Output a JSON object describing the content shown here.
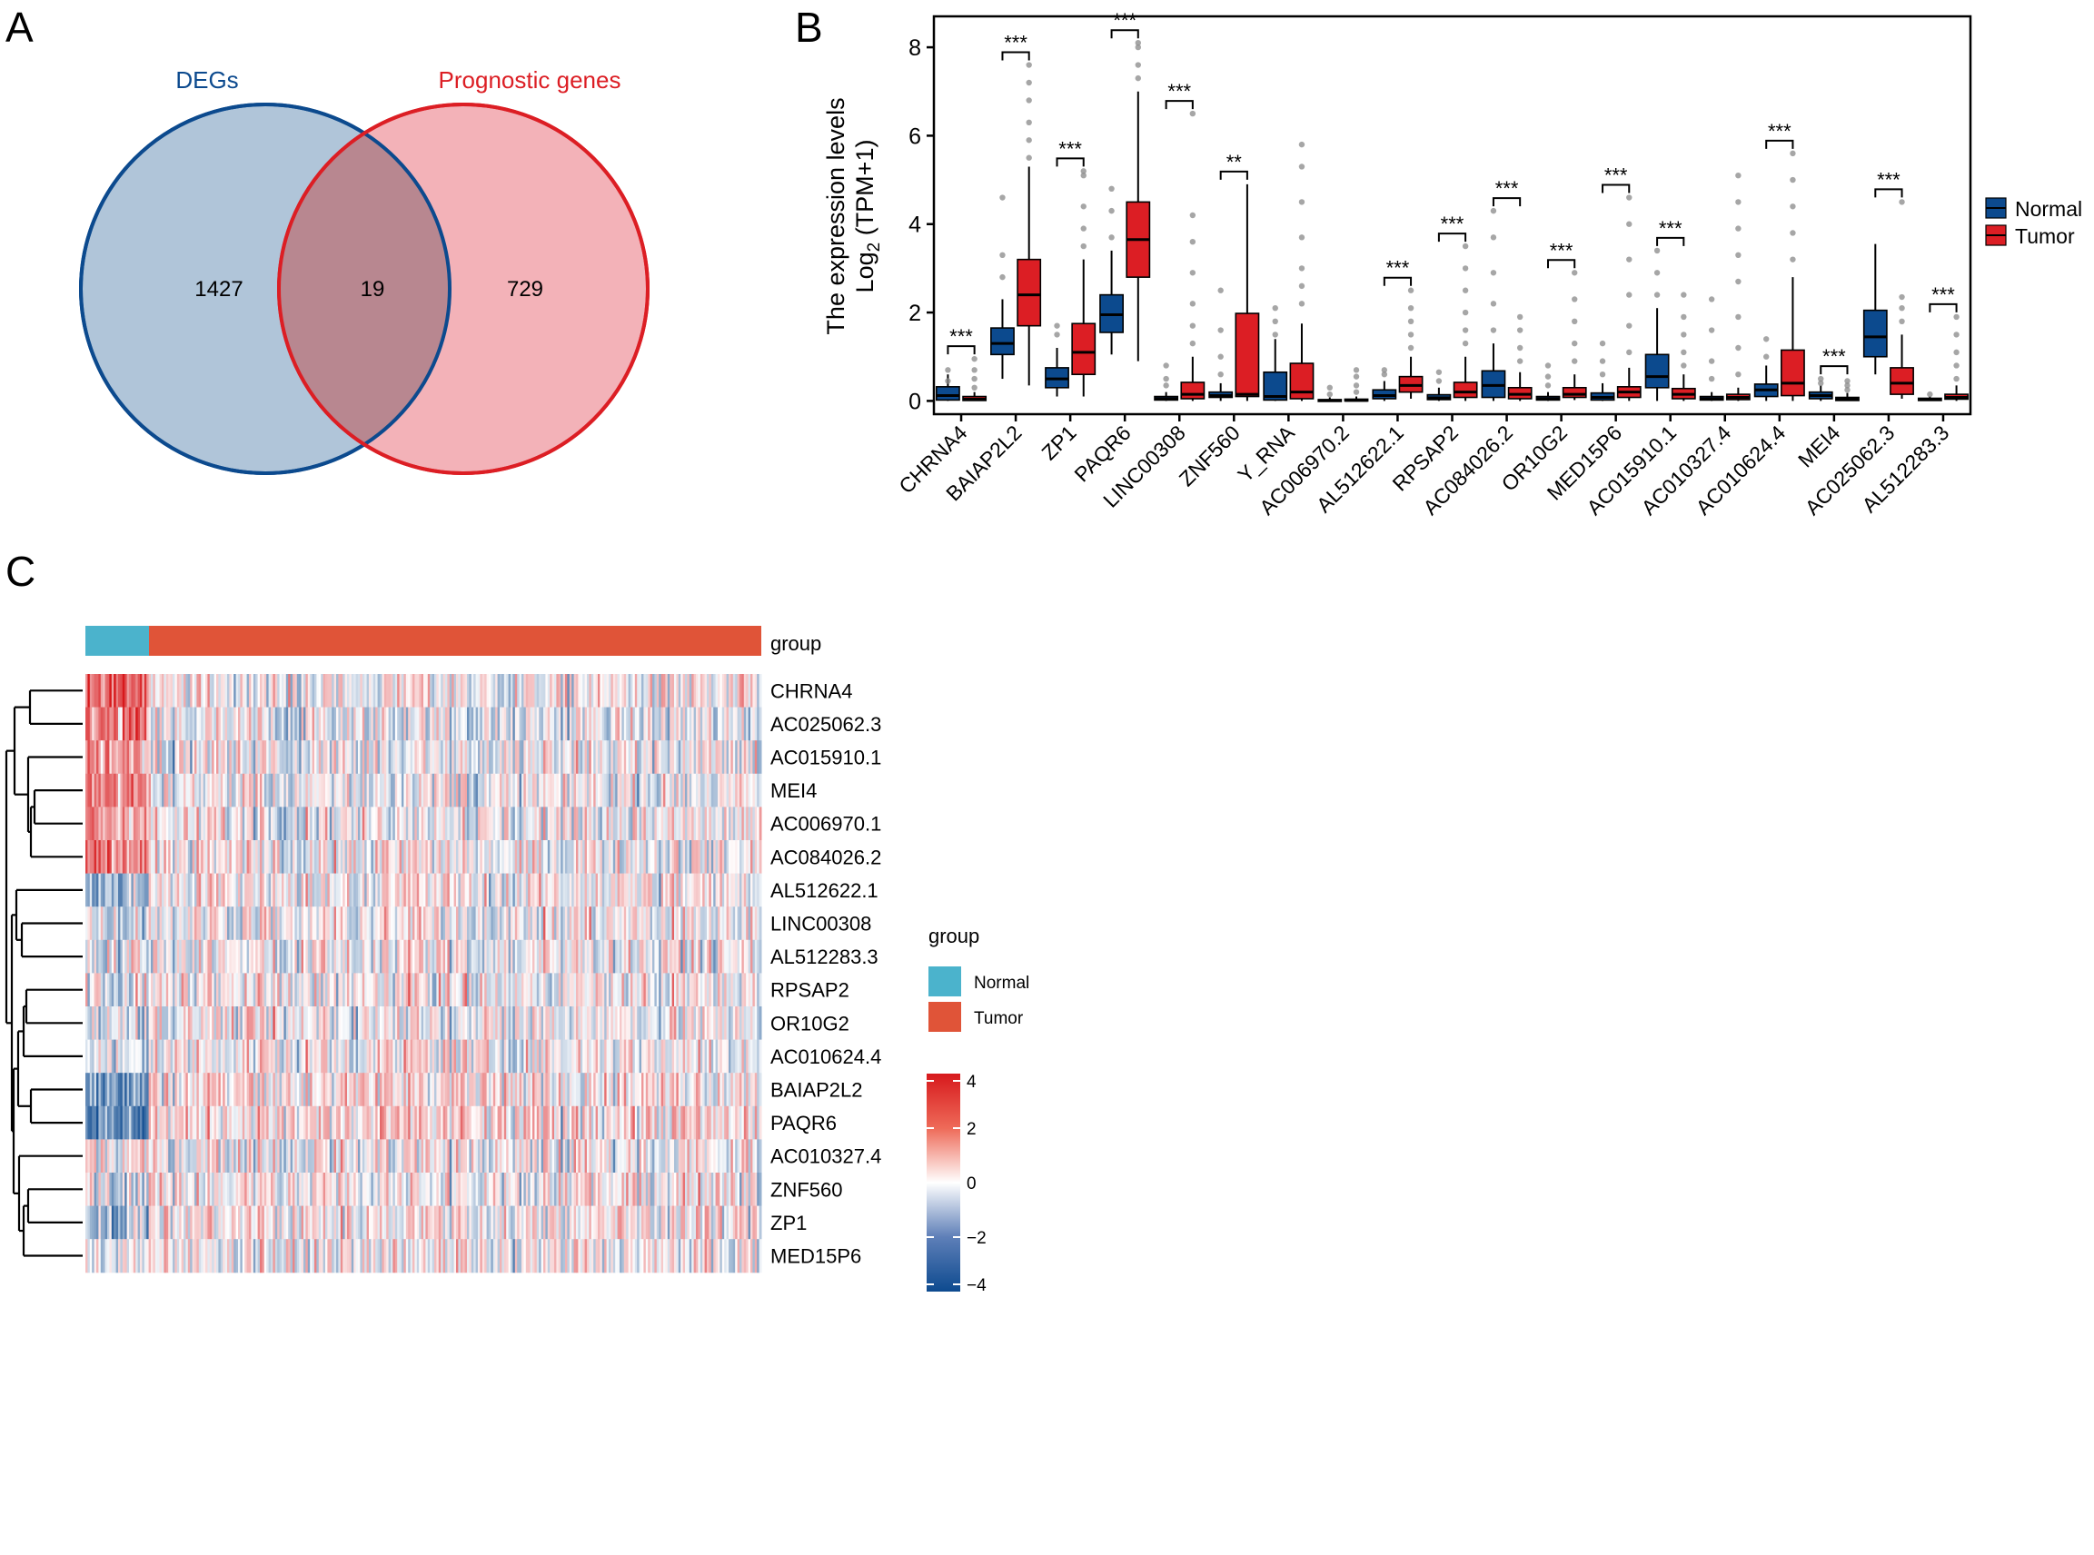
{
  "panel_labels": {
    "a": "A",
    "b": "B",
    "c": "C"
  },
  "colors": {
    "normal": "#0c4a8e",
    "tumor": "#dc1e24",
    "degs_fill": "#a9c0d6",
    "degs_stroke": "#0c4a8e",
    "prog_fill": "#f2aab0",
    "prog_stroke": "#dc1e24",
    "overlap_fill": "#b88790",
    "heat_normal": "#4bb3cc",
    "heat_tumor": "#e05438",
    "heat_high": "#d7191c",
    "heat_low": "#0d4a8f"
  },
  "chart_data": [
    {
      "type": "venn",
      "sets": [
        {
          "name": "DEGs",
          "only": 1427
        },
        {
          "name": "Prognostic genes",
          "only": 729
        }
      ],
      "intersection": 19
    },
    {
      "type": "box",
      "ylabel_line1": "The expression levels",
      "ylabel_line2_prefix": "Log",
      "ylabel_line2_sub": "2",
      "ylabel_line2_suffix": " (TPM+1)",
      "ylim": [
        -0.3,
        8.7
      ],
      "yticks": [
        "0",
        "2",
        "4",
        "6",
        "8"
      ],
      "legend": [
        "Normal",
        "Tumor"
      ],
      "genes": [
        {
          "name": "CHRNA4",
          "sig": "***",
          "normal": [
            0,
            0.02,
            0.12,
            0.32,
            0.6
          ],
          "tumor": [
            0,
            0.01,
            0.04,
            0.1,
            0.2
          ],
          "nout": [
            0.45,
            0.7
          ],
          "tout": [
            0.3,
            0.5,
            0.7,
            0.95
          ]
        },
        {
          "name": "BAIAP2L2",
          "sig": "***",
          "normal": [
            0.5,
            1.05,
            1.3,
            1.65,
            2.3
          ],
          "tumor": [
            0.35,
            1.7,
            2.4,
            3.2,
            5.3
          ],
          "nout": [
            2.8,
            3.3,
            4.6
          ],
          "tout": [
            5.5,
            5.9,
            6.3,
            6.8,
            7.2,
            7.6
          ]
        },
        {
          "name": "ZP1",
          "sig": "***",
          "normal": [
            0.1,
            0.3,
            0.5,
            0.75,
            1.2
          ],
          "tumor": [
            0.1,
            0.6,
            1.1,
            1.75,
            3.2
          ],
          "nout": [
            1.5,
            1.7
          ],
          "tout": [
            3.5,
            3.9,
            4.4,
            5.1,
            5.2
          ]
        },
        {
          "name": "PAQR6",
          "sig": "***",
          "normal": [
            1.05,
            1.55,
            1.95,
            2.4,
            3.4
          ],
          "tumor": [
            0.9,
            2.8,
            3.65,
            4.5,
            7.0
          ],
          "nout": [
            3.7,
            4.3,
            4.8
          ],
          "tout": [
            7.3,
            7.6,
            8.0,
            8.1
          ]
        },
        {
          "name": "LINC00308",
          "sig": "***",
          "normal": [
            0,
            0.02,
            0.05,
            0.1,
            0.2
          ],
          "tumor": [
            0,
            0.05,
            0.15,
            0.42,
            1.0
          ],
          "nout": [
            0.35,
            0.5,
            0.8
          ],
          "tout": [
            1.3,
            1.7,
            2.2,
            2.9,
            3.6,
            4.2,
            6.5
          ]
        },
        {
          "name": "ZNF560",
          "sig": "**",
          "normal": [
            0,
            0.08,
            0.12,
            0.2,
            0.4
          ],
          "tumor": [
            0,
            0.1,
            0.15,
            1.98,
            4.9
          ],
          "nout": [
            0.6,
            1.0,
            1.6,
            2.5
          ],
          "tout": []
        },
        {
          "name": "Y_RNA",
          "sig": "",
          "normal": [
            0,
            0.02,
            0.1,
            0.65,
            1.4
          ],
          "tumor": [
            0,
            0.05,
            0.2,
            0.85,
            1.75
          ],
          "nout": [
            1.5,
            1.8,
            2.1
          ],
          "tout": [
            2.2,
            2.6,
            3.0,
            3.7,
            4.5,
            5.3,
            5.8
          ]
        },
        {
          "name": "AC006970.2",
          "sig": "",
          "normal": [
            0,
            0,
            0.01,
            0.03,
            0.08
          ],
          "tumor": [
            0,
            0,
            0.01,
            0.04,
            0.1
          ],
          "nout": [
            0.15,
            0.3
          ],
          "tout": [
            0.2,
            0.35,
            0.55,
            0.7
          ]
        },
        {
          "name": "AL512622.1",
          "sig": "***",
          "normal": [
            0,
            0.05,
            0.12,
            0.25,
            0.45
          ],
          "tumor": [
            0.05,
            0.2,
            0.35,
            0.55,
            1.0
          ],
          "nout": [
            0.6,
            0.7
          ],
          "tout": [
            1.2,
            1.5,
            1.8,
            2.1,
            2.5
          ]
        },
        {
          "name": "RPSAP2",
          "sig": "***",
          "normal": [
            0,
            0.03,
            0.07,
            0.14,
            0.3
          ],
          "tumor": [
            0,
            0.08,
            0.2,
            0.42,
            1.0
          ],
          "nout": [
            0.45,
            0.65
          ],
          "tout": [
            1.3,
            1.6,
            2.0,
            2.5,
            3.0,
            3.5
          ]
        },
        {
          "name": "AC084026.2",
          "sig": "***",
          "normal": [
            0,
            0.08,
            0.35,
            0.68,
            1.3
          ],
          "tumor": [
            0,
            0.05,
            0.15,
            0.3,
            0.65
          ],
          "nout": [
            1.6,
            2.2,
            2.9,
            3.7,
            4.3
          ],
          "tout": [
            0.9,
            1.2,
            1.6,
            1.9
          ]
        },
        {
          "name": "OR10G2",
          "sig": "***",
          "normal": [
            0,
            0.02,
            0.05,
            0.1,
            0.2
          ],
          "tumor": [
            0.02,
            0.08,
            0.15,
            0.3,
            0.6
          ],
          "nout": [
            0.35,
            0.55,
            0.8
          ],
          "tout": [
            0.9,
            1.3,
            1.8,
            2.3,
            2.9
          ]
        },
        {
          "name": "MED15P6",
          "sig": "***",
          "normal": [
            0,
            0.02,
            0.08,
            0.18,
            0.4
          ],
          "tumor": [
            0,
            0.08,
            0.2,
            0.32,
            0.75
          ],
          "nout": [
            0.6,
            0.9,
            1.3
          ],
          "tout": [
            1.1,
            1.7,
            2.4,
            3.2,
            4.0,
            4.6
          ]
        },
        {
          "name": "AC015910.1",
          "sig": "***",
          "normal": [
            0,
            0.3,
            0.55,
            1.05,
            2.1
          ],
          "tumor": [
            0,
            0.05,
            0.15,
            0.28,
            0.6
          ],
          "nout": [
            2.4,
            2.9,
            3.4
          ],
          "tout": [
            0.8,
            1.1,
            1.5,
            1.9,
            2.4
          ]
        },
        {
          "name": "AC010327.4",
          "sig": "",
          "normal": [
            0,
            0.02,
            0.05,
            0.1,
            0.2
          ],
          "tumor": [
            0,
            0.03,
            0.08,
            0.15,
            0.3
          ],
          "nout": [
            0.5,
            0.9,
            1.6,
            2.3
          ],
          "tout": [
            0.6,
            1.2,
            1.9,
            2.7,
            3.3,
            3.9,
            4.5,
            5.1
          ]
        },
        {
          "name": "AC010624.4",
          "sig": "***",
          "normal": [
            0,
            0.1,
            0.25,
            0.38,
            0.8
          ],
          "tumor": [
            0,
            0.12,
            0.4,
            1.15,
            2.8
          ],
          "nout": [
            1.0,
            1.4
          ],
          "tout": [
            3.2,
            3.8,
            4.4,
            5.0,
            5.6
          ]
        },
        {
          "name": "MEI4",
          "sig": "***",
          "normal": [
            0,
            0.05,
            0.12,
            0.2,
            0.35
          ],
          "tumor": [
            0,
            0.01,
            0.04,
            0.08,
            0.18
          ],
          "nout": [
            0.4,
            0.5
          ],
          "tout": [
            0.25,
            0.35,
            0.45
          ]
        },
        {
          "name": "AC025062.3",
          "sig": "***",
          "normal": [
            0.6,
            1.0,
            1.45,
            2.05,
            3.55
          ],
          "tumor": [
            0.05,
            0.15,
            0.4,
            0.75,
            1.5
          ],
          "nout": [],
          "tout": [
            1.8,
            2.1,
            2.35,
            4.5
          ]
        },
        {
          "name": "AL512283.3",
          "sig": "***",
          "normal": [
            0,
            0.01,
            0.03,
            0.06,
            0.1
          ],
          "tumor": [
            0,
            0.04,
            0.08,
            0.15,
            0.35
          ],
          "nout": [
            0.15
          ],
          "tout": [
            0.5,
            0.8,
            1.1,
            1.5,
            1.9
          ]
        }
      ]
    },
    {
      "type": "heatmap",
      "annotation_label": "group",
      "genes": [
        "CHRNA4",
        "AC025062.3",
        "AC015910.1",
        "MEI4",
        "AC006970.1",
        "AC084026.2",
        "AL512622.1",
        "LINC00308",
        "AL512283.3",
        "RPSAP2",
        "OR10G2",
        "AC010624.4",
        "BAIAP2L2",
        "PAQR6",
        "AC010327.4",
        "ZNF560",
        "ZP1",
        "MED15P6"
      ],
      "legend_title": "group",
      "legend_groups": [
        "Normal",
        "Tumor"
      ],
      "colorbar_ticks": [
        "4",
        "2",
        "0",
        "−2",
        "−4"
      ],
      "colorbar_range": [
        -4,
        4
      ]
    }
  ]
}
